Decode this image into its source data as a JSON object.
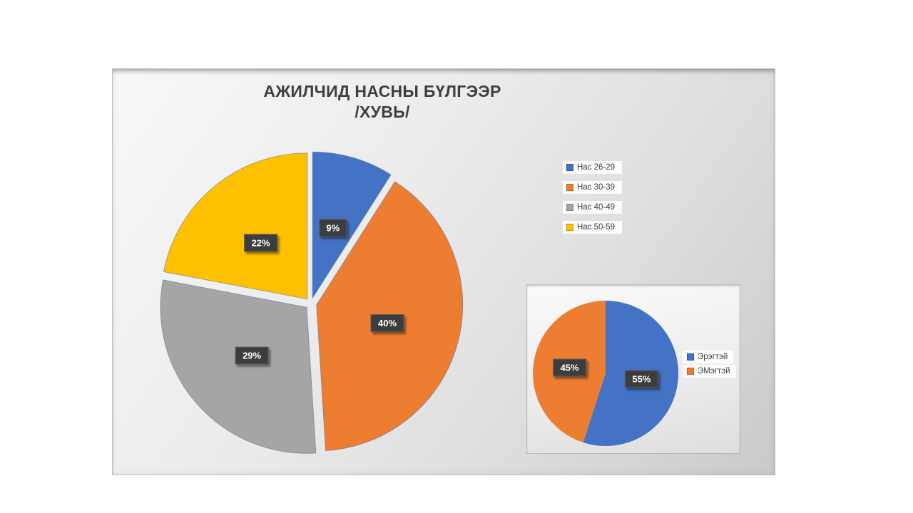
{
  "colors": {
    "slice_blue": "#4472C4",
    "slice_orange": "#ED7D31",
    "slice_gray": "#A5A5A5",
    "slice_yellow": "#FFC000",
    "badge_bg": "#3C3C3C",
    "badge_border": "#5E5E5E",
    "badge_text": "#FFFFFF",
    "title_text": "#3F3F3F",
    "legend_text": "#3F3F3F",
    "slice_stroke": "rgba(70,105,170,0.55)"
  },
  "main_chart": {
    "title_line1": "АЖИЛЧИД НАСНЫ БҮЛГЭЭР",
    "title_line2": "/ХУВЬ/"
  },
  "chart_data": [
    {
      "type": "pie",
      "title": "АЖИЛЧИД НАСНЫ БҮЛГЭЭР /ХУВЬ/",
      "categories": [
        "Нас 26-29",
        "Нас 30-39",
        "Нас 40-49",
        "Нас 50-59"
      ],
      "values": [
        9,
        40,
        29,
        22
      ],
      "data_labels": [
        "9%",
        "40%",
        "29%",
        "22%"
      ],
      "colors": [
        "#4472C4",
        "#ED7D31",
        "#A5A5A5",
        "#FFC000"
      ],
      "swatch_border_colors": [
        "#2F5597",
        "#C55A11",
        "#7F7F7F",
        "#BF9000"
      ],
      "legend_position": "right",
      "exploded": true,
      "start_angle_deg": 0,
      "direction": "clockwise"
    },
    {
      "type": "pie",
      "title": "",
      "categories": [
        "Эрэгтэй",
        "ЭМэгтэй"
      ],
      "values": [
        55,
        45
      ],
      "data_labels": [
        "55%",
        "45%"
      ],
      "colors": [
        "#4472C4",
        "#ED7D31"
      ],
      "swatch_border_colors": [
        "#2F5597",
        "#C55A11"
      ],
      "legend_position": "right",
      "exploded": false,
      "start_angle_deg": 0,
      "direction": "clockwise"
    }
  ]
}
